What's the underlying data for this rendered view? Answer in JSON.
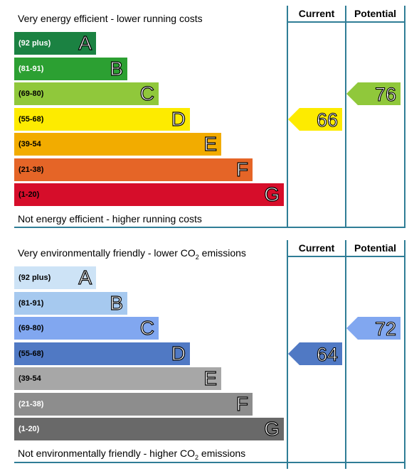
{
  "energy": {
    "header_current": "Current",
    "header_potential": "Potential",
    "top_text": "Very energy efficient - lower running costs",
    "bottom_text": "Not energy efficient - higher running costs",
    "bands": [
      {
        "range": "(92 plus)",
        "letter": "A",
        "color": "#1b8242",
        "text_color": "#ffffff"
      },
      {
        "range": "(81-91)",
        "letter": "B",
        "color": "#2ca032",
        "text_color": "#ffffff"
      },
      {
        "range": "(69-80)",
        "letter": "C",
        "color": "#90c83b",
        "text_color": "#000000"
      },
      {
        "range": "(55-68)",
        "letter": "D",
        "color": "#fdeb00",
        "text_color": "#000000"
      },
      {
        "range": "(39-54",
        "letter": "E",
        "color": "#f2ac00",
        "text_color": "#000000"
      },
      {
        "range": "(21-38)",
        "letter": "F",
        "color": "#e56527",
        "text_color": "#000000"
      },
      {
        "range": "(1-20)",
        "letter": "G",
        "color": "#d60d2a",
        "text_color": "#000000"
      }
    ],
    "current": {
      "value": "66",
      "band": "D",
      "color": "#fdeb00"
    },
    "potential": {
      "value": "76",
      "band": "C",
      "color": "#90c83b"
    }
  },
  "environmental": {
    "header_current": "Current",
    "header_potential": "Potential",
    "top_text_pre": "Very environmentally friendly - lower CO",
    "top_text_sub": "2",
    "top_text_post": " emissions",
    "bottom_text_pre": "Not environmentally friendly - higher CO",
    "bottom_text_sub": "2",
    "bottom_text_post": " emissions",
    "bands": [
      {
        "range": "(92 plus)",
        "letter": "A",
        "color": "#cde3f6",
        "text_color": "#000000"
      },
      {
        "range": "(81-91)",
        "letter": "B",
        "color": "#a6c9ef",
        "text_color": "#000000"
      },
      {
        "range": "(69-80)",
        "letter": "C",
        "color": "#81a7f0",
        "text_color": "#000000"
      },
      {
        "range": "(55-68)",
        "letter": "D",
        "color": "#5079c4",
        "text_color": "#000000"
      },
      {
        "range": "(39-54",
        "letter": "E",
        "color": "#a7a7a7",
        "text_color": "#000000"
      },
      {
        "range": "(21-38)",
        "letter": "F",
        "color": "#8d8d8d",
        "text_color": "#ffffff"
      },
      {
        "range": "(1-20)",
        "letter": "G",
        "color": "#696969",
        "text_color": "#ffffff"
      }
    ],
    "current": {
      "value": "64",
      "band": "D",
      "color": "#5079c4"
    },
    "potential": {
      "value": "72",
      "band": "C",
      "color": "#81a7f0"
    }
  },
  "chart_data": [
    {
      "type": "bar",
      "categories": [
        "A",
        "B",
        "C",
        "D",
        "E",
        "F",
        "G"
      ],
      "series": [
        {
          "name": "Current",
          "values": [
            null,
            null,
            null,
            66,
            null,
            null,
            null
          ]
        },
        {
          "name": "Potential",
          "values": [
            null,
            null,
            76,
            null,
            null,
            null,
            null
          ]
        }
      ]
    },
    {
      "type": "bar",
      "categories": [
        "A",
        "B",
        "C",
        "D",
        "E",
        "F",
        "G"
      ],
      "series": [
        {
          "name": "Current",
          "values": [
            null,
            null,
            null,
            64,
            null,
            null,
            null
          ]
        },
        {
          "name": "Potential",
          "values": [
            null,
            null,
            72,
            null,
            null,
            null,
            null
          ]
        }
      ]
    }
  ]
}
